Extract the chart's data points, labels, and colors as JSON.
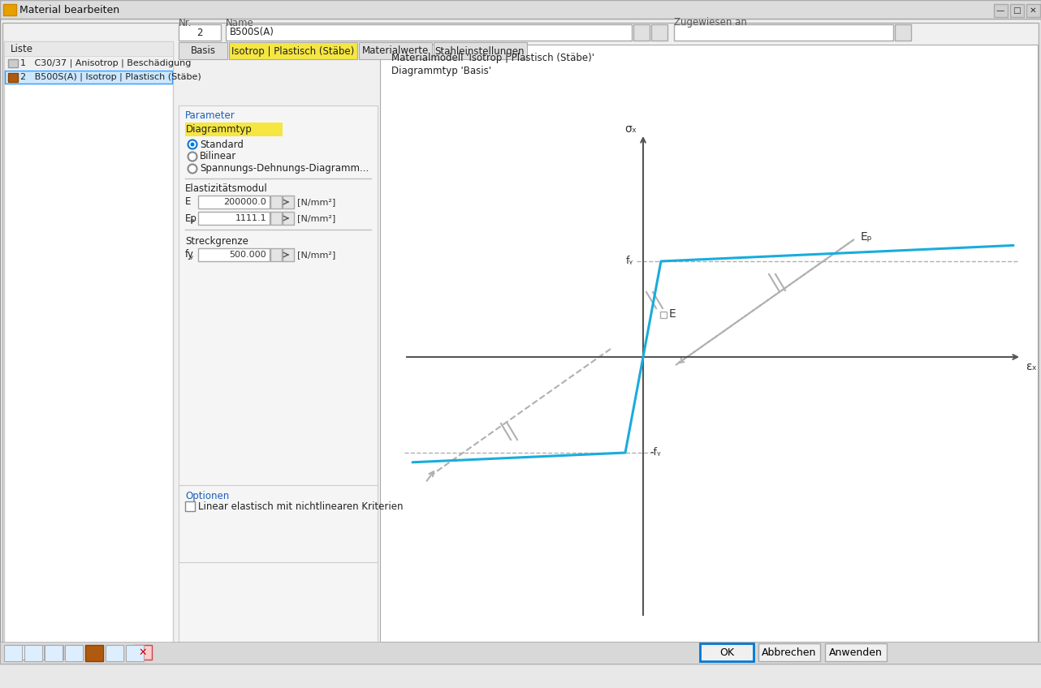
{
  "window_title": "Material bearbeiten",
  "bg_color": "#e8e8e8",
  "dialog_bg": "#f0f0f0",
  "white": "#ffffff",
  "list_header": "Liste",
  "list_item1": "1   C30/37 | Anisotrop | Beschädigung",
  "list_item2": "2   B500S(A) | Isotrop | Plastisch (Stäbe)",
  "list_item1_bg": "#f0f0f0",
  "list_item2_bg": "#cce8ff",
  "list_item2_border": "#3399ff",
  "nr_label": "Nr.",
  "nr_value": "2",
  "name_label": "Name",
  "name_value": "B500S(A)",
  "zugewiesen_label": "Zugewiesen an",
  "tabs": [
    "Basis",
    "Isotrop | Plastisch (Stäbe)",
    "Materialwerte",
    "Stahleinstellungen"
  ],
  "active_tab_idx": 1,
  "active_tab_color": "#f5e642",
  "inactive_tab_color": "#e0e0e0",
  "param_label": "Parameter",
  "diagrammtyp_label": "Diagrammtyp",
  "diagrammtyp_bg": "#f5e642",
  "radio_labels": [
    "Standard",
    "Bilinear",
    "Spannungs-Dehnungs-Diagramm..."
  ],
  "radio_selected": 0,
  "elastizitaet_label": "Elastizitätsmodul",
  "E_label": "E",
  "E_value": "200000.0",
  "Ep_label": "Eₚ",
  "Ep_value": "1111.1",
  "unit": "[N/mm²]",
  "streckgrenze_label": "Streckgrenze",
  "fy_label": "fᵧ",
  "fy_value": "500.000",
  "optionen_label": "Optionen",
  "checkbox_label": "Linear elastisch mit nichtlinearen Kriterien",
  "graph_title1": "Materialmodell 'Isotrop | Plastisch (Stäbe)'",
  "graph_title2": "Diagrammtyp 'Basis'",
  "sigma_label": "σₓ",
  "epsilon_label": "εₓ",
  "fy_graph": "fᵧ",
  "neg_fy_graph": "-fᵧ",
  "E_graph": "E",
  "Ep_graph": "Eₚ",
  "curve_color": "#1aacdc",
  "dash_color": "#b0b0b0",
  "axis_color": "#555555",
  "ok_label": "OK",
  "cancel_label": "Abbrechen",
  "apply_label": "Anwenden",
  "icon_brown": "#b05a10",
  "titlebar_bg": "#dcdcdc",
  "separator_color": "#c0c0c0",
  "input_bg": "#f5f5f5",
  "blue_text": "#1a5fbd",
  "toolbar_bg": "#d8d8d8"
}
